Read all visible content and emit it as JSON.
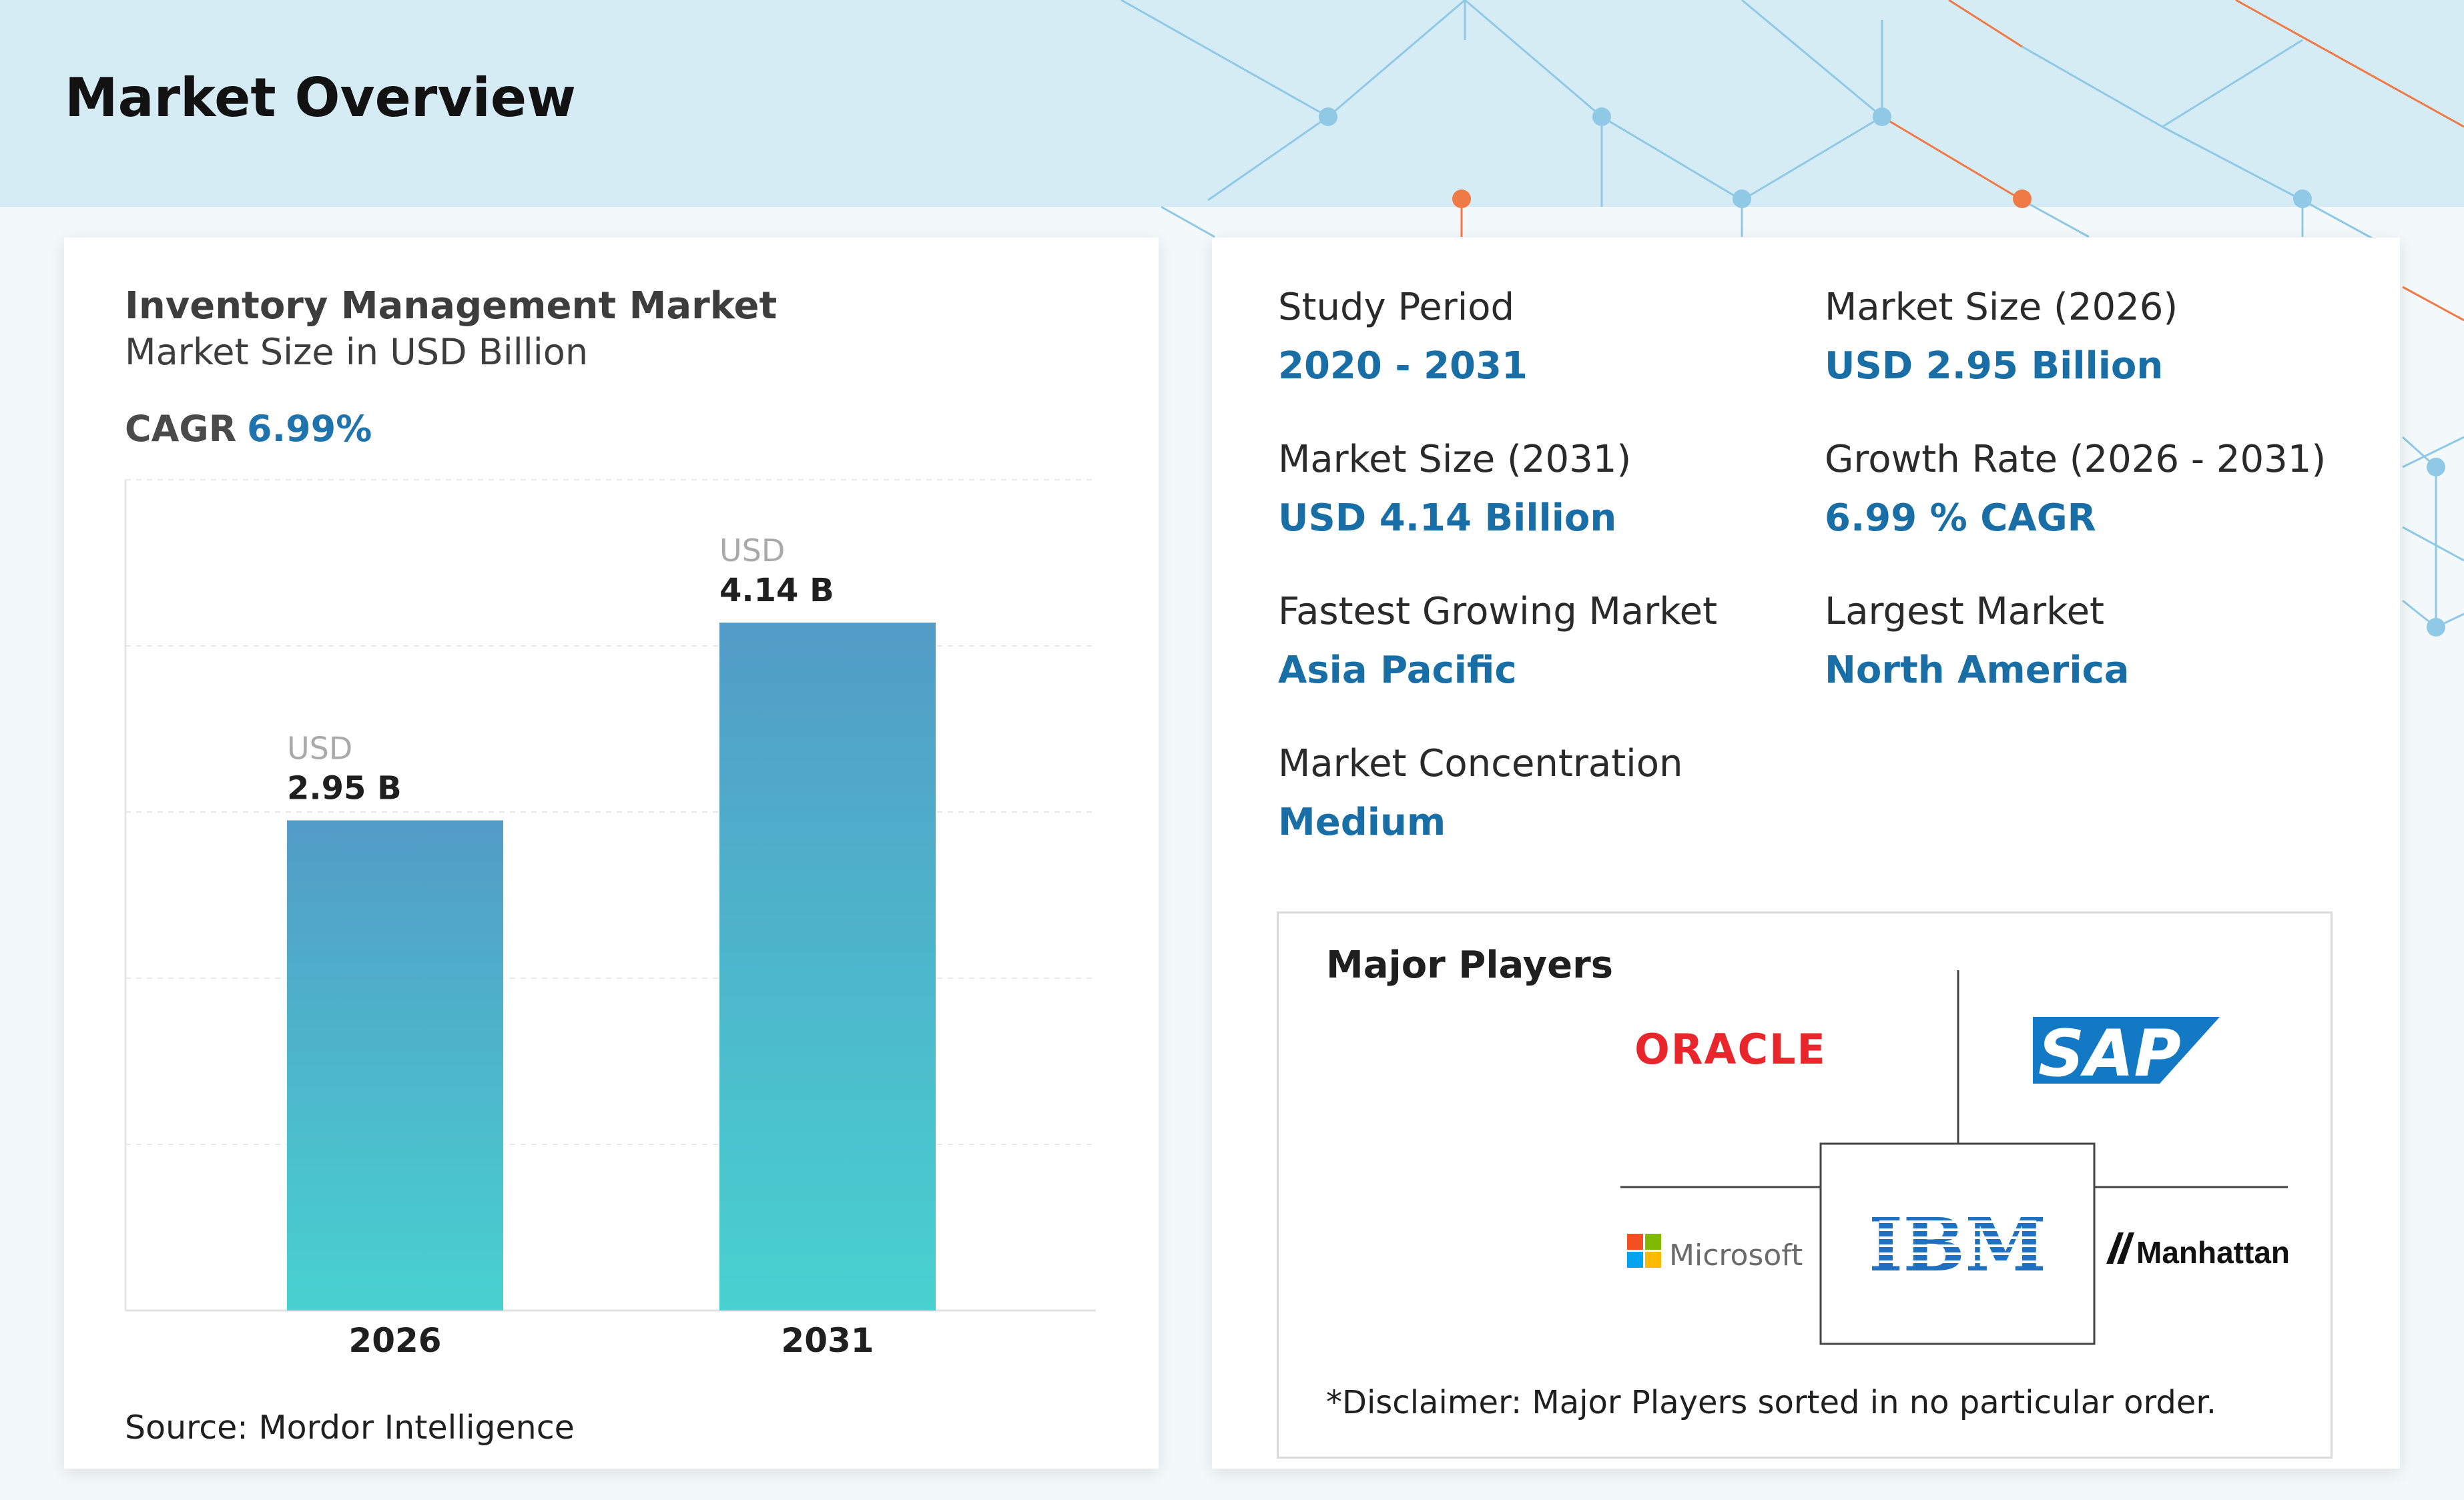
{
  "page": {
    "title": "Market Overview"
  },
  "chart_data": {
    "type": "bar",
    "title": "Inventory Management Market",
    "subtitle": "Market Size in USD Billion",
    "categories": [
      "2026",
      "2031"
    ],
    "values": [
      2.95,
      4.14
    ],
    "bar_prefix": "USD",
    "bar_labels": [
      "2.95 B",
      "4.14 B"
    ],
    "ylim": [
      0,
      5
    ],
    "grid": true,
    "xlabel": "",
    "ylabel": "",
    "bar_gradient": [
      "#529cc7",
      "#48d1d0"
    ],
    "cagr_label": "CAGR",
    "cagr_value": "6.99%",
    "source": "Source: Mordor Intelligence"
  },
  "stats": [
    {
      "label": "Study Period",
      "value": "2020 - 2031"
    },
    {
      "label": "Market Size (2026)",
      "value": "USD 2.95 Billion"
    },
    {
      "label": "Market Size (2031)",
      "value": "USD 4.14 Billion"
    },
    {
      "label": "Growth Rate (2026 - 2031)",
      "value": "6.99 % CAGR"
    },
    {
      "label": "Fastest Growing Market",
      "value": "Asia Pacific"
    },
    {
      "label": "Largest Market",
      "value": "North America"
    },
    {
      "label": "Market Concentration",
      "value": "Medium"
    }
  ],
  "major_players": {
    "title": "Major Players",
    "logos": [
      "ORACLE",
      "SAP",
      "Microsoft",
      "IBM",
      "Manhattan"
    ],
    "disclaimer": "*Disclaimer: Major Players sorted in no particular order."
  },
  "colors": {
    "accent_blue": "#1a6ea6",
    "oracle_red": "#e8262c",
    "sap_blue": "#1479c4",
    "ibm_blue": "#1f70c1",
    "network_blue": "#8fc9e6",
    "network_orange": "#f07a45"
  }
}
